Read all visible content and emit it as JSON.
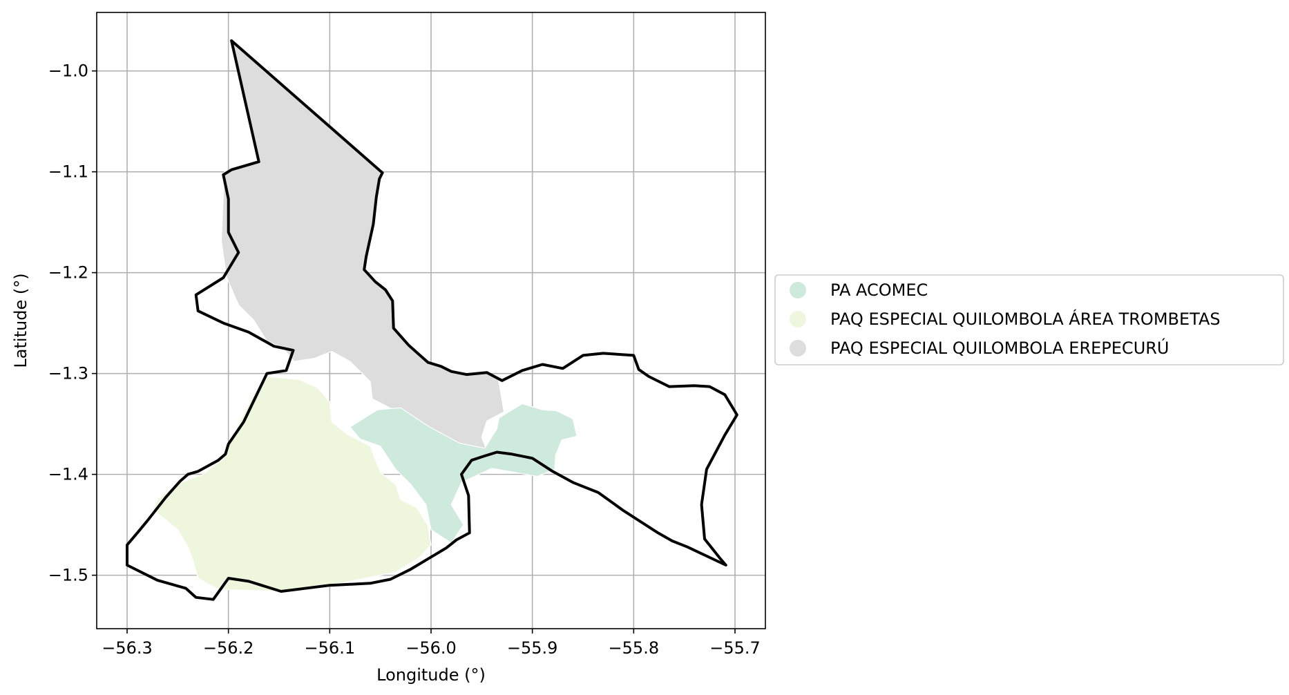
{
  "map": {
    "xlabel": "Longitude (°)",
    "ylabel": "Latitude (°)",
    "xlim": [
      -56.33,
      -55.67
    ],
    "ylim": [
      -1.553,
      -0.942
    ],
    "grid": true,
    "x_ticks": [
      -56.3,
      -56.2,
      -56.1,
      -56.0,
      -55.9,
      -55.8,
      -55.7
    ],
    "x_tick_labels": [
      "−56.3",
      "−56.2",
      "−56.1",
      "−56.0",
      "−55.9",
      "−55.8",
      "−55.7"
    ],
    "y_ticks": [
      -1.0,
      -1.1,
      -1.2,
      -1.3,
      -1.4,
      -1.5
    ],
    "y_tick_labels": [
      "−1.0",
      "−1.1",
      "−1.2",
      "−1.3",
      "−1.4",
      "−1.5"
    ],
    "legend_placement": "center-right outside plot",
    "legend": [
      {
        "label": "PA ACOMEC",
        "color": "#cdeadd"
      },
      {
        "label": "PAQ  ESPECIAL QUILOMBOLA ÁREA TROMBETAS",
        "color": "#eef7dd"
      },
      {
        "label": "PAQ ESPECIAL QUILOMBOLA EREPECURÚ",
        "color": "#dddddd"
      }
    ],
    "regions": [
      {
        "name": "PAQ ESPECIAL QUILOMBOLA EREPECURÚ",
        "color": "#dddddd",
        "coords": [
          [
            -56.197,
            -0.97
          ],
          [
            -56.048,
            -1.101
          ],
          [
            -56.051,
            -1.107
          ],
          [
            -56.054,
            -1.125
          ],
          [
            -56.057,
            -1.152
          ],
          [
            -56.064,
            -1.184
          ],
          [
            -56.066,
            -1.197
          ],
          [
            -56.055,
            -1.209
          ],
          [
            -56.045,
            -1.217
          ],
          [
            -56.038,
            -1.228
          ],
          [
            -56.037,
            -1.255
          ],
          [
            -56.022,
            -1.272
          ],
          [
            -56.003,
            -1.289
          ],
          [
            -55.99,
            -1.293
          ],
          [
            -55.98,
            -1.298
          ],
          [
            -55.965,
            -1.301
          ],
          [
            -55.945,
            -1.299
          ],
          [
            -55.934,
            -1.303
          ],
          [
            -55.928,
            -1.338
          ],
          [
            -55.945,
            -1.347
          ],
          [
            -55.95,
            -1.363
          ],
          [
            -55.943,
            -1.381
          ],
          [
            -55.975,
            -1.374
          ],
          [
            -56.003,
            -1.357
          ],
          [
            -56.033,
            -1.338
          ],
          [
            -56.058,
            -1.325
          ],
          [
            -56.06,
            -1.308
          ],
          [
            -56.08,
            -1.288
          ],
          [
            -56.098,
            -1.278
          ],
          [
            -56.115,
            -1.285
          ],
          [
            -56.135,
            -1.288
          ],
          [
            -56.147,
            -1.274
          ],
          [
            -56.162,
            -1.268
          ],
          [
            -56.175,
            -1.247
          ],
          [
            -56.19,
            -1.232
          ],
          [
            -56.202,
            -1.204
          ],
          [
            -56.207,
            -1.168
          ],
          [
            -56.204,
            -1.1
          ],
          [
            -56.17,
            -1.09
          ]
        ]
      },
      {
        "name": "PA ACOMEC",
        "color": "#cdeadd",
        "coords": [
          [
            -56.053,
            -1.336
          ],
          [
            -56.03,
            -1.334
          ],
          [
            -56.003,
            -1.352
          ],
          [
            -55.972,
            -1.369
          ],
          [
            -55.947,
            -1.374
          ],
          [
            -55.935,
            -1.355
          ],
          [
            -55.933,
            -1.344
          ],
          [
            -55.91,
            -1.33
          ],
          [
            -55.89,
            -1.336
          ],
          [
            -55.876,
            -1.337
          ],
          [
            -55.86,
            -1.345
          ],
          [
            -55.856,
            -1.362
          ],
          [
            -55.871,
            -1.366
          ],
          [
            -55.877,
            -1.381
          ],
          [
            -55.878,
            -1.395
          ],
          [
            -55.895,
            -1.402
          ],
          [
            -55.94,
            -1.394
          ],
          [
            -55.97,
            -1.408
          ],
          [
            -55.98,
            -1.43
          ],
          [
            -55.968,
            -1.45
          ],
          [
            -55.98,
            -1.468
          ],
          [
            -56.0,
            -1.455
          ],
          [
            -56.005,
            -1.43
          ],
          [
            -56.02,
            -1.41
          ],
          [
            -56.035,
            -1.395
          ],
          [
            -56.05,
            -1.372
          ],
          [
            -56.07,
            -1.365
          ],
          [
            -56.08,
            -1.353
          ]
        ]
      },
      {
        "name": "PAQ  ESPECIAL QUILOMBOLA ÁREA TROMBETAS",
        "color": "#eef7dd",
        "coords": [
          [
            -56.162,
            -1.303
          ],
          [
            -56.13,
            -1.306
          ],
          [
            -56.112,
            -1.314
          ],
          [
            -56.1,
            -1.328
          ],
          [
            -56.098,
            -1.348
          ],
          [
            -56.083,
            -1.36
          ],
          [
            -56.06,
            -1.372
          ],
          [
            -56.05,
            -1.398
          ],
          [
            -56.035,
            -1.41
          ],
          [
            -56.03,
            -1.425
          ],
          [
            -56.014,
            -1.433
          ],
          [
            -56.003,
            -1.451
          ],
          [
            -56.0,
            -1.47
          ],
          [
            -56.012,
            -1.483
          ],
          [
            -56.035,
            -1.497
          ],
          [
            -56.06,
            -1.502
          ],
          [
            -56.09,
            -1.508
          ],
          [
            -56.12,
            -1.512
          ],
          [
            -56.15,
            -1.516
          ],
          [
            -56.18,
            -1.515
          ],
          [
            -56.21,
            -1.514
          ],
          [
            -56.23,
            -1.503
          ],
          [
            -56.235,
            -1.485
          ],
          [
            -56.24,
            -1.472
          ],
          [
            -56.25,
            -1.455
          ],
          [
            -56.262,
            -1.445
          ],
          [
            -56.275,
            -1.435
          ],
          [
            -56.27,
            -1.425
          ],
          [
            -56.252,
            -1.41
          ],
          [
            -56.225,
            -1.4
          ],
          [
            -56.205,
            -1.384
          ],
          [
            -56.192,
            -1.354
          ],
          [
            -56.175,
            -1.32
          ]
        ]
      }
    ],
    "outline": [
      [
        -56.197,
        -0.97
      ],
      [
        -56.048,
        -1.101
      ],
      [
        -56.051,
        -1.107
      ],
      [
        -56.054,
        -1.125
      ],
      [
        -56.057,
        -1.152
      ],
      [
        -56.064,
        -1.184
      ],
      [
        -56.066,
        -1.197
      ],
      [
        -56.055,
        -1.209
      ],
      [
        -56.045,
        -1.217
      ],
      [
        -56.038,
        -1.228
      ],
      [
        -56.037,
        -1.255
      ],
      [
        -56.022,
        -1.272
      ],
      [
        -56.003,
        -1.289
      ],
      [
        -55.99,
        -1.293
      ],
      [
        -55.98,
        -1.298
      ],
      [
        -55.965,
        -1.301
      ],
      [
        -55.945,
        -1.299
      ],
      [
        -55.93,
        -1.307
      ],
      [
        -55.91,
        -1.297
      ],
      [
        -55.89,
        -1.291
      ],
      [
        -55.87,
        -1.295
      ],
      [
        -55.85,
        -1.282
      ],
      [
        -55.83,
        -1.28
      ],
      [
        -55.8,
        -1.282
      ],
      [
        -55.795,
        -1.296
      ],
      [
        -55.785,
        -1.303
      ],
      [
        -55.765,
        -1.313
      ],
      [
        -55.74,
        -1.312
      ],
      [
        -55.725,
        -1.313
      ],
      [
        -55.71,
        -1.321
      ],
      [
        -55.698,
        -1.341
      ],
      [
        -55.71,
        -1.361
      ],
      [
        -55.728,
        -1.395
      ],
      [
        -55.733,
        -1.43
      ],
      [
        -55.73,
        -1.464
      ],
      [
        -55.715,
        -1.483
      ],
      [
        -55.709,
        -1.49
      ],
      [
        -55.747,
        -1.472
      ],
      [
        -55.762,
        -1.466
      ],
      [
        -55.776,
        -1.458
      ],
      [
        -55.81,
        -1.436
      ],
      [
        -55.835,
        -1.418
      ],
      [
        -55.86,
        -1.408
      ],
      [
        -55.88,
        -1.397
      ],
      [
        -55.9,
        -1.384
      ],
      [
        -55.92,
        -1.38
      ],
      [
        -55.935,
        -1.378
      ],
      [
        -55.948,
        -1.382
      ],
      [
        -55.96,
        -1.386
      ],
      [
        -55.97,
        -1.4
      ],
      [
        -55.963,
        -1.421
      ],
      [
        -55.962,
        -1.458
      ],
      [
        -55.975,
        -1.465
      ],
      [
        -55.985,
        -1.473
      ],
      [
        -56.0,
        -1.482
      ],
      [
        -56.02,
        -1.494
      ],
      [
        -56.04,
        -1.504
      ],
      [
        -56.06,
        -1.508
      ],
      [
        -56.08,
        -1.509
      ],
      [
        -56.1,
        -1.51
      ],
      [
        -56.148,
        -1.516
      ],
      [
        -56.18,
        -1.506
      ],
      [
        -56.2,
        -1.503
      ],
      [
        -56.215,
        -1.524
      ],
      [
        -56.232,
        -1.522
      ],
      [
        -56.242,
        -1.513
      ],
      [
        -56.27,
        -1.505
      ],
      [
        -56.3,
        -1.49
      ],
      [
        -56.3,
        -1.47
      ],
      [
        -56.289,
        -1.457
      ],
      [
        -56.28,
        -1.446
      ],
      [
        -56.262,
        -1.423
      ],
      [
        -56.248,
        -1.407
      ],
      [
        -56.24,
        -1.4
      ],
      [
        -56.23,
        -1.397
      ],
      [
        -56.21,
        -1.386
      ],
      [
        -56.203,
        -1.38
      ],
      [
        -56.2,
        -1.37
      ],
      [
        -56.185,
        -1.348
      ],
      [
        -56.162,
        -1.3
      ],
      [
        -56.143,
        -1.297
      ],
      [
        -56.136,
        -1.277
      ],
      [
        -56.155,
        -1.273
      ],
      [
        -56.18,
        -1.259
      ],
      [
        -56.205,
        -1.25
      ],
      [
        -56.23,
        -1.238
      ],
      [
        -56.232,
        -1.222
      ],
      [
        -56.205,
        -1.205
      ],
      [
        -56.19,
        -1.18
      ],
      [
        -56.2,
        -1.16
      ],
      [
        -56.2,
        -1.127
      ],
      [
        -56.205,
        -1.103
      ],
      [
        -56.197,
        -1.098
      ],
      [
        -56.17,
        -1.09
      ]
    ]
  }
}
